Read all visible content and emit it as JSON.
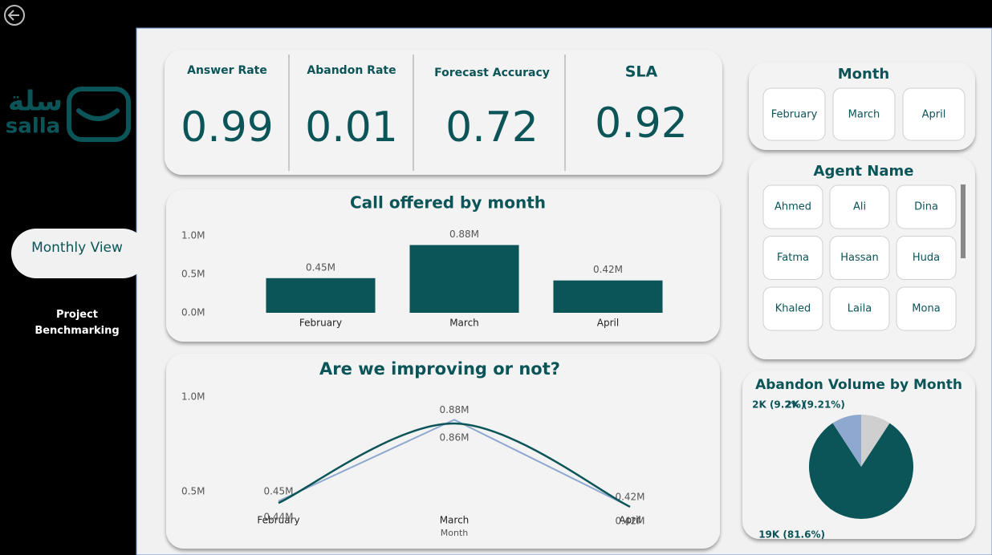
{
  "logo": {
    "arabic": "سلة",
    "latin": "salla"
  },
  "nav": {
    "active": "Monthly View",
    "other": "Project Benchmarking"
  },
  "kpis": [
    {
      "label": "Answer Rate",
      "value": 0.99
    },
    {
      "label": "Abandon Rate",
      "value": 0.01
    },
    {
      "label": "Forecast Accuracy",
      "value": 0.72
    },
    {
      "label": "SLA",
      "value": 0.92
    }
  ],
  "slicers": {
    "month": {
      "title": "Month",
      "items": [
        "February",
        "March",
        "April"
      ]
    },
    "agent": {
      "title": "Agent Name",
      "items": [
        "Ahmed",
        "Ali",
        "Dina",
        "Fatma",
        "Hassan",
        "Huda",
        "Khaled",
        "Laila",
        "Mona"
      ]
    }
  },
  "chart_data": [
    {
      "type": "bar",
      "title": "Call offered by month",
      "categories": [
        "February",
        "March",
        "April"
      ],
      "values": [
        450000,
        880000,
        420000
      ],
      "value_labels": [
        "0.45M",
        "0.88M",
        "0.42M"
      ],
      "color": "#0b5458",
      "ylim": [
        0,
        1000000
      ],
      "yticks": [
        {
          "value": 0,
          "label": "0.0M"
        },
        {
          "value": 500000,
          "label": "0.5M"
        },
        {
          "value": 1000000,
          "label": "1.0M"
        }
      ]
    },
    {
      "type": "line",
      "title": "Are we improving or not?",
      "x_label": "Month",
      "categories": [
        "February",
        "March",
        "April"
      ],
      "series": [
        {
          "color": "#8ea8d0",
          "smooth": false,
          "values": [
            450000,
            880000,
            420000
          ],
          "value_labels": [
            "0.45M",
            "0.88M",
            "0.42M"
          ]
        },
        {
          "color": "#0b5458",
          "smooth": true,
          "values": [
            440000,
            860000,
            420000
          ],
          "value_labels": [
            "0.44M",
            "0.86M",
            "0.42M"
          ]
        }
      ],
      "ylim": [
        400000,
        1000000
      ],
      "yticks": [
        {
          "value": 500000,
          "label": "0.5M"
        },
        {
          "value": 1000000,
          "label": "1.0M"
        }
      ]
    },
    {
      "type": "pie",
      "title": "Abandon Volume by Month",
      "categories": [
        null,
        null,
        null
      ],
      "values": [
        9.21,
        81.6,
        9.2
      ],
      "value_labels": [
        "2K (9.21%)",
        "19K (81.6%)",
        "2K (9.2%)"
      ],
      "colors": [
        "#cfcfcf",
        "#0b5458",
        "#8ea8d0"
      ]
    }
  ]
}
